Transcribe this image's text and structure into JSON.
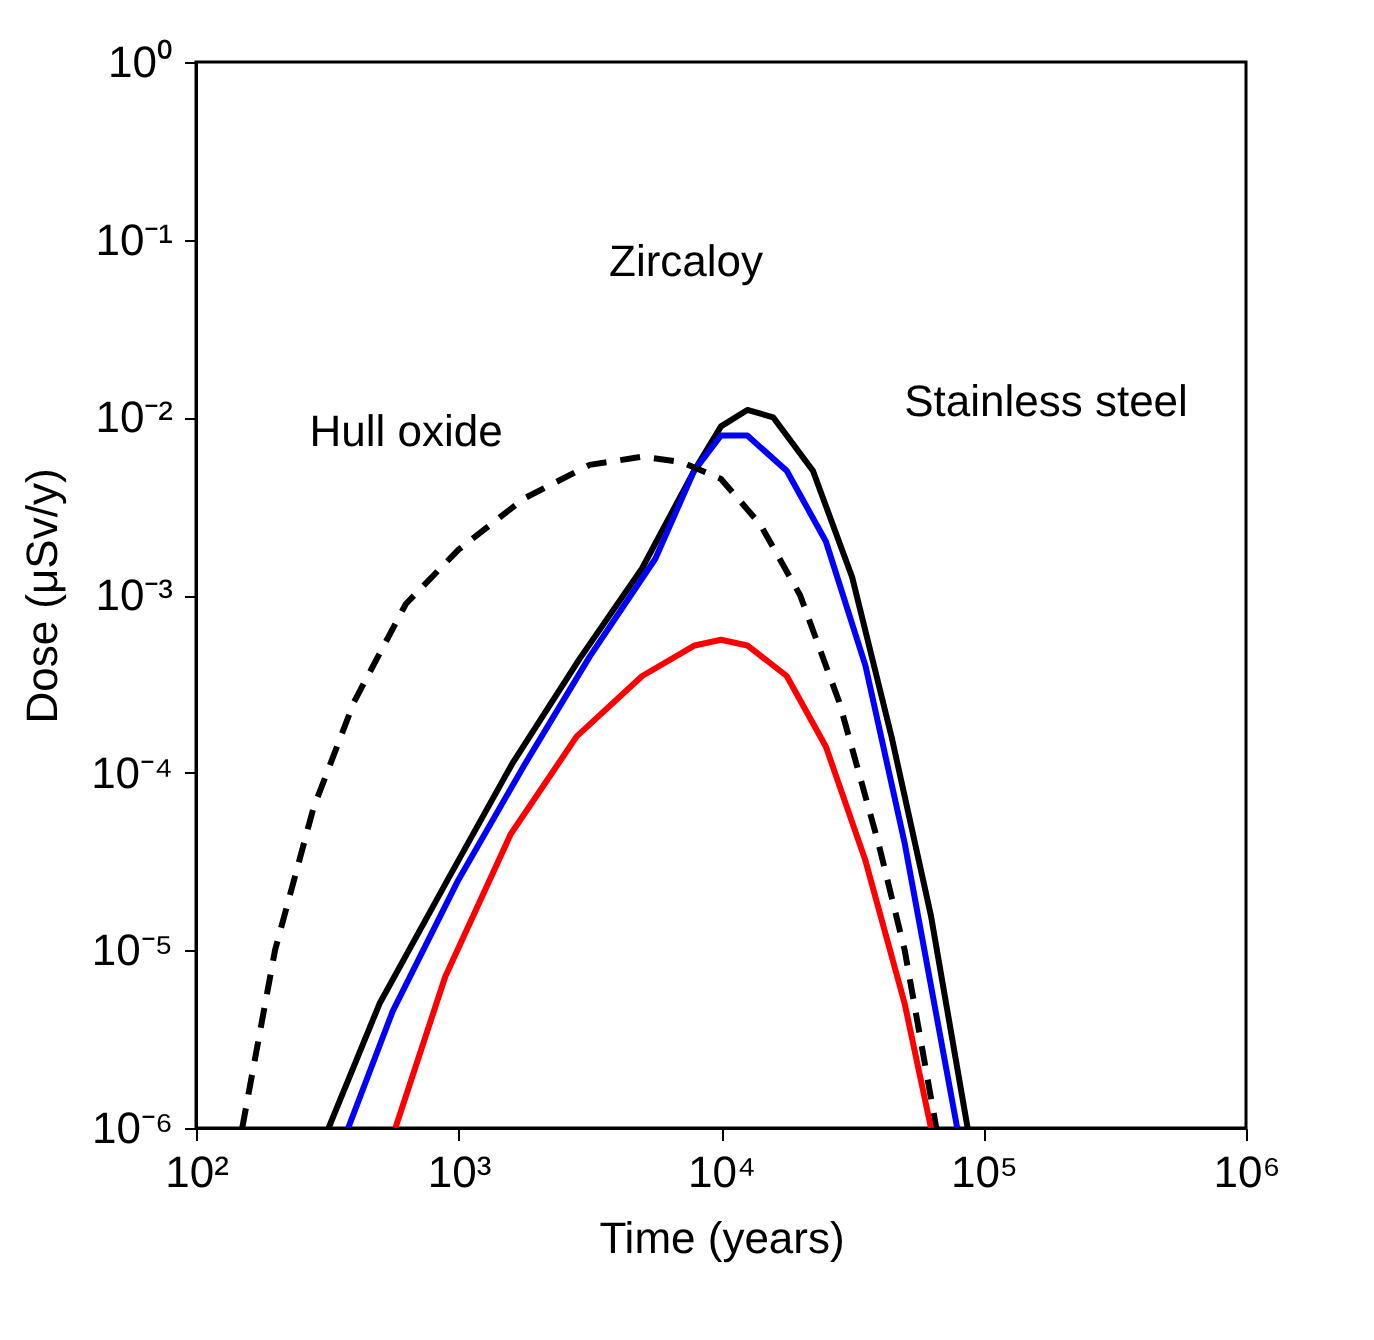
{
  "chart_data": {
    "type": "line",
    "xlabel": "Time (years)",
    "ylabel": "Dose (μSv/y)",
    "log": "xy",
    "grid": false,
    "xlim": [
      100,
      1000000
    ],
    "ylim": [
      1e-06,
      1
    ],
    "xticks": [
      {
        "value": 100,
        "label": "10²"
      },
      {
        "value": 1000,
        "label": "10³"
      },
      {
        "value": 10000,
        "label": "10⁴"
      },
      {
        "value": 100000,
        "label": "10⁵"
      },
      {
        "value": 1000000,
        "label": "10⁶"
      }
    ],
    "yticks": [
      {
        "value": 1e-06,
        "label": "10⁻⁶"
      },
      {
        "value": 1e-05,
        "label": "10⁻⁵"
      },
      {
        "value": 0.0001,
        "label": "10⁻⁴"
      },
      {
        "value": 0.001,
        "label": "10⁻³"
      },
      {
        "value": 0.01,
        "label": "10⁻²"
      },
      {
        "value": 0.1,
        "label": "10⁻¹"
      },
      {
        "value": 1,
        "label": "10⁰"
      }
    ],
    "series": [
      {
        "color": "#000000",
        "line_style": "solid",
        "x": [
          320,
          500,
          910,
          1600,
          2900,
          5000,
          7900,
          10000,
          12600,
          15800,
          22400,
          31600,
          44700,
          63000,
          87000
        ],
        "values": [
          1e-06,
          5e-06,
          2.5e-05,
          0.000112,
          0.00044,
          0.00141,
          0.005,
          0.0089,
          0.011,
          0.01,
          0.005,
          0.00126,
          0.000158,
          1.58e-05,
          1e-06
        ]
      },
      {
        "color": "#0000ff",
        "line_style": "solid",
        "x": [
          380,
          560,
          1000,
          1780,
          3160,
          5620,
          7900,
          10000,
          12600,
          17800,
          25100,
          35500,
          50100,
          79400
        ],
        "values": [
          1e-06,
          4.5e-06,
          2.5e-05,
          0.00011,
          0.00045,
          0.0016,
          0.005,
          0.0079,
          0.0079,
          0.005,
          0.002,
          0.0004,
          4e-05,
          1e-06
        ]
      },
      {
        "color": "#000000",
        "line_style": "dashed",
        "x": [
          150,
          200,
          280,
          400,
          630,
          1000,
          1780,
          3160,
          5010,
          7080,
          10000,
          14100,
          20000,
          28200,
          39800,
          50100,
          66100
        ],
        "values": [
          1e-06,
          1e-05,
          6.3e-05,
          0.00025,
          0.00089,
          0.0018,
          0.0035,
          0.0054,
          0.006,
          0.0056,
          0.0045,
          0.0025,
          0.001,
          0.00025,
          4e-05,
          1e-05,
          1e-06
        ]
      },
      {
        "color": "#ff0000",
        "line_style": "solid",
        "x": [
          575,
          890,
          1580,
          2820,
          5010,
          7940,
          10000,
          12600,
          17800,
          25100,
          35500,
          50100,
          63100
        ],
        "values": [
          1e-06,
          7.1e-06,
          4.5e-05,
          0.00016,
          0.00035,
          0.00052,
          0.00056,
          0.00052,
          0.00035,
          0.00014,
          3.2e-05,
          5e-06,
          1e-06
        ]
      }
    ],
    "annotations": [
      "Zircaloy",
      "Stainless steel",
      "Hull oxide"
    ]
  }
}
